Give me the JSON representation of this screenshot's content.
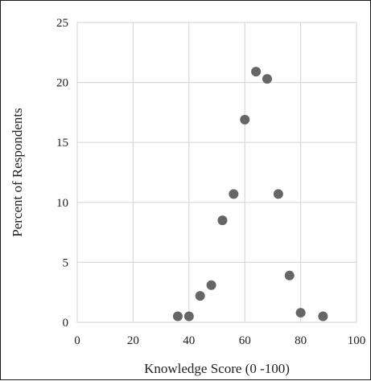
{
  "chart_data": {
    "type": "scatter",
    "title": "",
    "xlabel": "Knowledge Score (0 -100)",
    "ylabel": "Percent of Respondents",
    "xlim": [
      0,
      100
    ],
    "ylim": [
      0,
      25
    ],
    "x_ticks": [
      0,
      20,
      40,
      60,
      80,
      100
    ],
    "y_ticks": [
      0,
      5,
      10,
      15,
      20,
      25
    ],
    "grid": true,
    "legend": "none",
    "marker_color": "#666666",
    "grid_color": "#d9d9d9",
    "series": [
      {
        "points": [
          {
            "x": 36,
            "y": 0.5
          },
          {
            "x": 40,
            "y": 0.5
          },
          {
            "x": 44,
            "y": 2.2
          },
          {
            "x": 48,
            "y": 3.1
          },
          {
            "x": 52,
            "y": 8.5
          },
          {
            "x": 56,
            "y": 10.7
          },
          {
            "x": 60,
            "y": 16.9
          },
          {
            "x": 64,
            "y": 20.9
          },
          {
            "x": 68,
            "y": 20.3
          },
          {
            "x": 72,
            "y": 10.7
          },
          {
            "x": 76,
            "y": 3.9
          },
          {
            "x": 80,
            "y": 0.8
          },
          {
            "x": 88,
            "y": 0.5
          }
        ]
      }
    ]
  }
}
